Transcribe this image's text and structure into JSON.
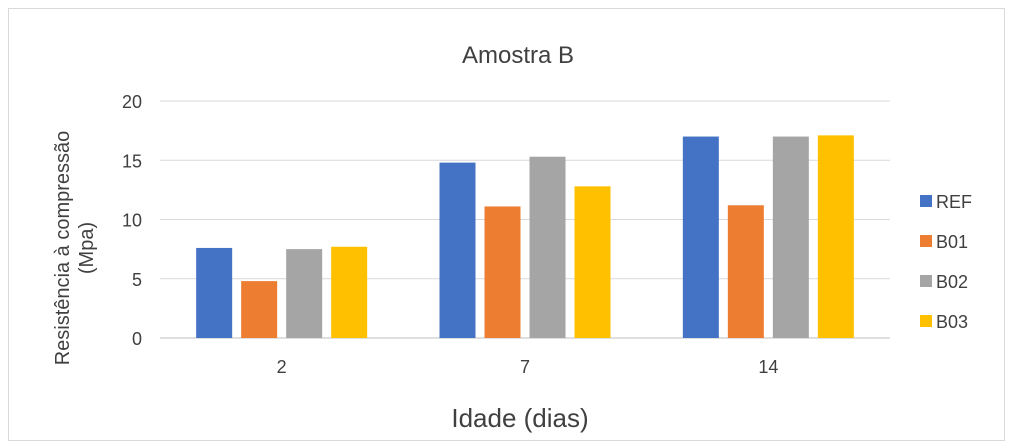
{
  "chart_data": {
    "type": "bar",
    "title": "Amostra B",
    "xlabel": "Idade (dias)",
    "ylabel_line1": "Resistência à compressão",
    "ylabel_line2": "(Mpa)",
    "categories": [
      "2",
      "7",
      "14"
    ],
    "ylim": [
      0,
      20
    ],
    "yticks": [
      0,
      5,
      10,
      15,
      20
    ],
    "grid": true,
    "legend_position": "right",
    "series": [
      {
        "name": "REF",
        "color": "#4472C4",
        "values": [
          7.6,
          14.8,
          17.0
        ]
      },
      {
        "name": "B01",
        "color": "#ED7D31",
        "values": [
          4.8,
          11.1,
          11.2
        ]
      },
      {
        "name": "B02",
        "color": "#A5A5A5",
        "values": [
          7.5,
          15.3,
          17.0
        ]
      },
      {
        "name": "B03",
        "color": "#FFC000",
        "values": [
          7.7,
          12.8,
          17.1
        ]
      }
    ]
  }
}
